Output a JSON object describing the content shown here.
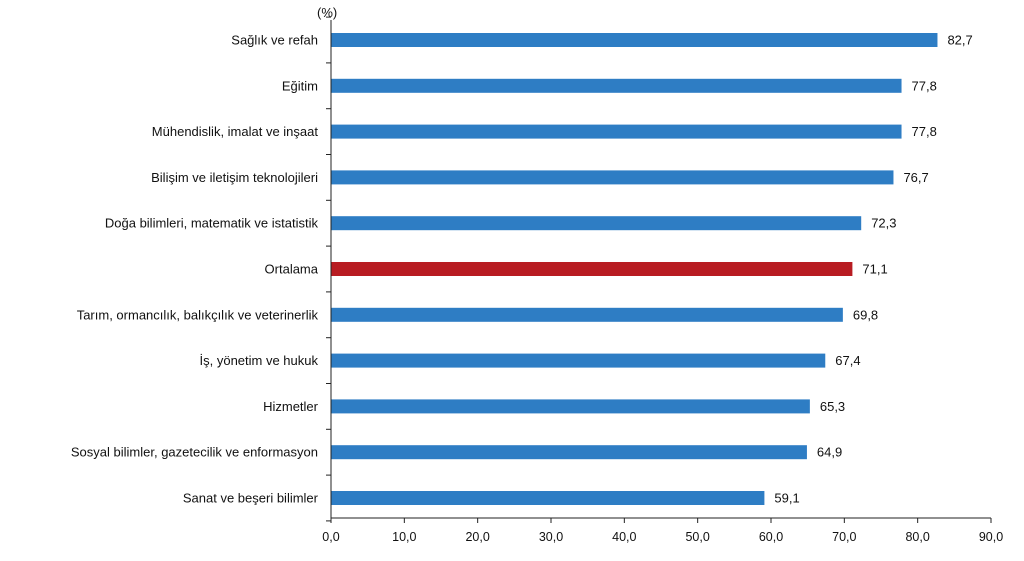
{
  "chart_data": {
    "type": "bar",
    "orientation": "horizontal",
    "unit_label": "(%)",
    "categories": [
      "Sağlık ve refah",
      "Eğitim",
      "Mühendislik, imalat ve inşaat",
      "Bilişim ve iletişim teknolojileri",
      "Doğa bilimleri, matematik ve istatistik",
      "Ortalama",
      "Tarım, ormancılık, balıkçılık ve veterinerlik",
      "İş, yönetim ve hukuk",
      "Hizmetler",
      "Sosyal bilimler, gazetecilik ve enformasyon",
      "Sanat ve beşeri bilimler"
    ],
    "values": [
      82.7,
      77.8,
      77.8,
      76.7,
      72.3,
      71.1,
      69.8,
      67.4,
      65.3,
      64.9,
      59.1
    ],
    "value_labels": [
      "82,7",
      "77,8",
      "77,8",
      "76,7",
      "72,3",
      "71,1",
      "69,8",
      "67,4",
      "65,3",
      "64,9",
      "59,1"
    ],
    "highlight_category": "Ortalama",
    "colors": {
      "bar": "#2e7dc4",
      "highlight": "#b81c22",
      "axis": "#222222"
    },
    "xlim": [
      0,
      90
    ],
    "xticks": [
      "0,0",
      "10,0",
      "20,0",
      "30,0",
      "40,0",
      "50,0",
      "60,0",
      "70,0",
      "80,0",
      "90,0"
    ],
    "grid": false
  }
}
